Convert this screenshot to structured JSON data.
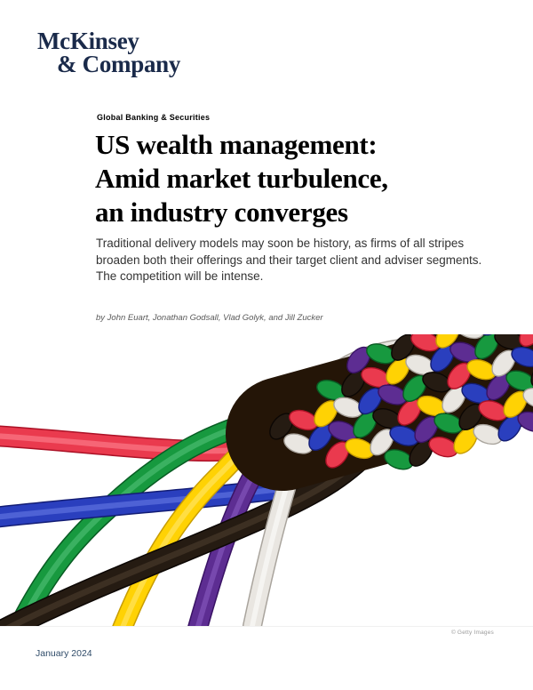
{
  "logo": {
    "line1": "McKinsey",
    "line2": "& Company"
  },
  "article": {
    "eyebrow": "Global Banking & Securities",
    "title_lines": [
      "US wealth management:",
      "Amid market turbulence,",
      "an industry converges"
    ],
    "deck_lines": [
      "Traditional delivery models may soon be history, as firms of all stripes",
      "broaden both their offerings and their target client and adviser segments.",
      "The competition will be intense."
    ],
    "byline": "by John Euart, Jonathan Godsall, Vlad Golyk, and Jill Zucker"
  },
  "image": {
    "alt": "Seven colorful ropes converging into a single braid",
    "credit": "© Getty Images",
    "braid_shadow": "#241507",
    "ropes": [
      {
        "name": "red",
        "color": "#ea3a4e",
        "dark": "#ab1126",
        "light": "#ff8a97"
      },
      {
        "name": "green",
        "color": "#17993f",
        "dark": "#085c23",
        "light": "#58c47d"
      },
      {
        "name": "royal-blue",
        "color": "#2a3fbe",
        "dark": "#131d74",
        "light": "#6b80e8"
      },
      {
        "name": "yellow",
        "color": "#ffd204",
        "dark": "#c79c00",
        "light": "#ffe878"
      },
      {
        "name": "black",
        "color": "#251b12",
        "dark": "#0c0704",
        "light": "#51402f"
      },
      {
        "name": "purple",
        "color": "#5d2d92",
        "dark": "#3a1365",
        "light": "#8d5fc4"
      },
      {
        "name": "white",
        "color": "#e9e6e1",
        "dark": "#a9a49d",
        "light": "#ffffff"
      }
    ]
  },
  "footer": {
    "date": "January 2024"
  },
  "colors": {
    "logo_navy": "#1a2a4a",
    "footer_navy": "#2f4b68",
    "deck_gray": "#333333",
    "byline_gray": "#595959",
    "credit_gray": "#9b9b9b"
  }
}
